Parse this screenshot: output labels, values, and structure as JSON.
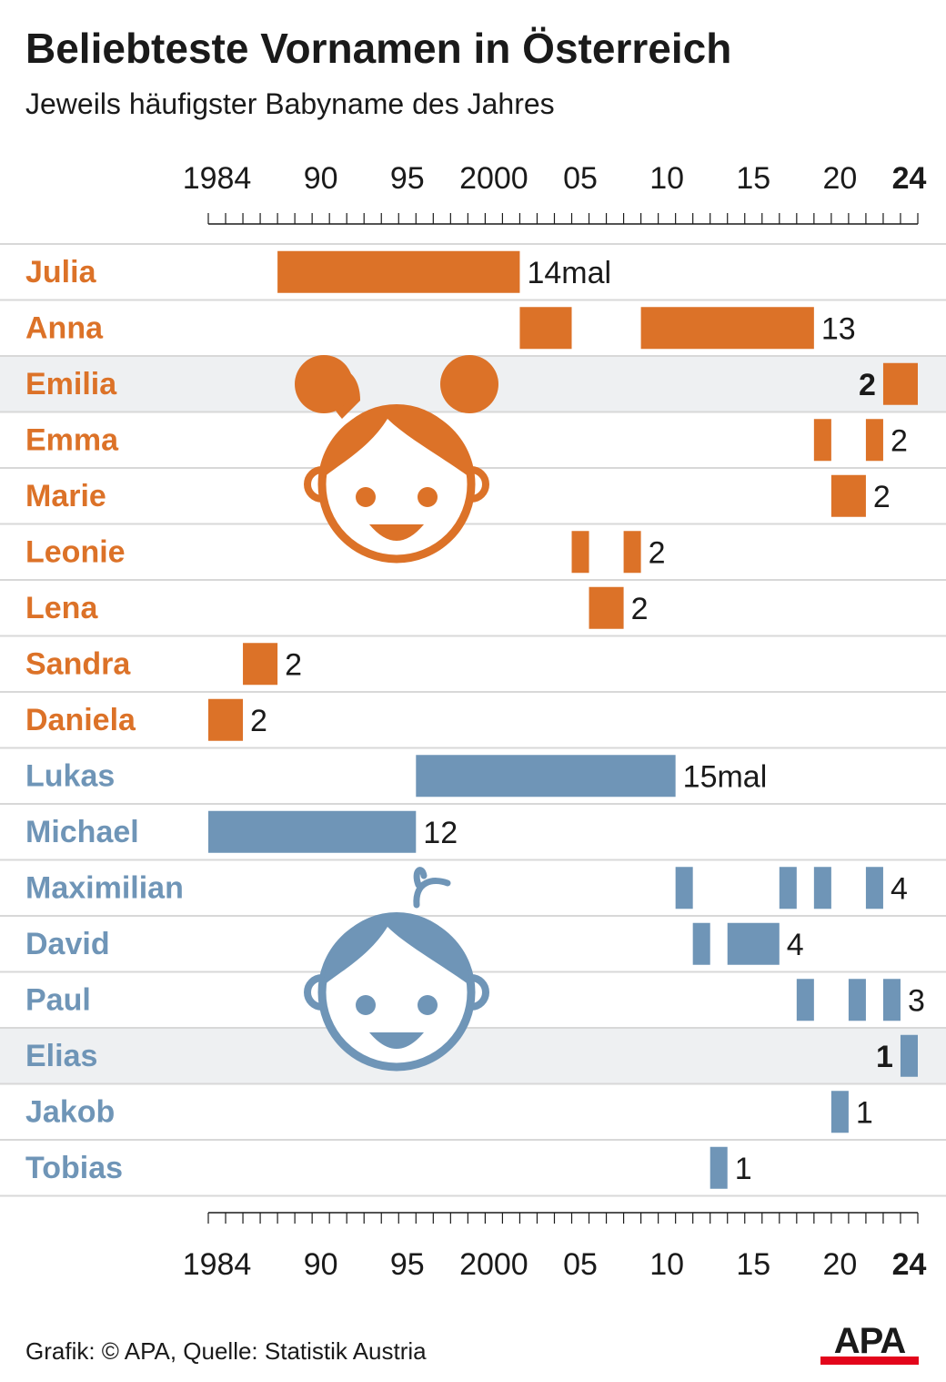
{
  "title": "Beliebteste Vornamen in Österreich",
  "subtitle": "Jeweils häufigster Babyname des Jahres",
  "footer": {
    "source": "Grafik: © APA, Quelle: Statistik Austria",
    "logo_text": "APA"
  },
  "colors": {
    "girls": "#dc7228",
    "boys": "#6f95b7",
    "highlight_row": "#eef0f2",
    "grid": "#d8d8d8",
    "text": "#1a1a1a",
    "logo_red": "#e3051b"
  },
  "icons": {
    "girls": "girl-face-icon",
    "boys": "boy-face-icon"
  },
  "chart_data": {
    "type": "bar",
    "subtype": "timeline",
    "title": "Beliebteste Vornamen in Österreich",
    "subtitle": "Jeweils häufigster Babyname des Jahres",
    "xlim": [
      1984,
      2024
    ],
    "x_ticks": [
      {
        "year": 1984,
        "label": "1984",
        "bold": false
      },
      {
        "year": 1990,
        "label": "90",
        "bold": false
      },
      {
        "year": 1995,
        "label": "95",
        "bold": false
      },
      {
        "year": 2000,
        "label": "2000",
        "bold": false
      },
      {
        "year": 2005,
        "label": "05",
        "bold": false
      },
      {
        "year": 2010,
        "label": "10",
        "bold": false
      },
      {
        "year": 2015,
        "label": "15",
        "bold": false
      },
      {
        "year": 2020,
        "label": "20",
        "bold": false
      },
      {
        "year": 2024,
        "label": "24",
        "bold": true
      }
    ],
    "rows": [
      {
        "name": "Julia",
        "group": "girls",
        "highlight": false,
        "count_label": "14mal",
        "bold_label": false,
        "spans": [
          [
            1988,
            2001
          ]
        ]
      },
      {
        "name": "Anna",
        "group": "girls",
        "highlight": false,
        "count_label": "13",
        "bold_label": false,
        "spans": [
          [
            2002,
            2004
          ],
          [
            2009,
            2018
          ]
        ]
      },
      {
        "name": "Emilia",
        "group": "girls",
        "highlight": true,
        "count_label": "2",
        "bold_label": true,
        "spans": [
          [
            2023,
            2024
          ]
        ]
      },
      {
        "name": "Emma",
        "group": "girls",
        "highlight": false,
        "count_label": "2",
        "bold_label": false,
        "spans": [
          [
            2019,
            2019
          ],
          [
            2022,
            2022
          ]
        ]
      },
      {
        "name": "Marie",
        "group": "girls",
        "highlight": false,
        "count_label": "2",
        "bold_label": false,
        "spans": [
          [
            2020,
            2021
          ]
        ]
      },
      {
        "name": "Leonie",
        "group": "girls",
        "highlight": false,
        "count_label": "2",
        "bold_label": false,
        "spans": [
          [
            2005,
            2005
          ],
          [
            2008,
            2008
          ]
        ]
      },
      {
        "name": "Lena",
        "group": "girls",
        "highlight": false,
        "count_label": "2",
        "bold_label": false,
        "spans": [
          [
            2006,
            2007
          ]
        ]
      },
      {
        "name": "Sandra",
        "group": "girls",
        "highlight": false,
        "count_label": "2",
        "bold_label": false,
        "spans": [
          [
            1986,
            1987
          ]
        ]
      },
      {
        "name": "Daniela",
        "group": "girls",
        "highlight": false,
        "count_label": "2",
        "bold_label": false,
        "spans": [
          [
            1984,
            1985
          ]
        ]
      },
      {
        "name": "Lukas",
        "group": "boys",
        "highlight": false,
        "count_label": "15mal",
        "bold_label": false,
        "spans": [
          [
            1996,
            2010
          ]
        ]
      },
      {
        "name": "Michael",
        "group": "boys",
        "highlight": false,
        "count_label": "12",
        "bold_label": false,
        "spans": [
          [
            1984,
            1995
          ]
        ]
      },
      {
        "name": "Maximilian",
        "group": "boys",
        "highlight": false,
        "count_label": "4",
        "bold_label": false,
        "spans": [
          [
            2011,
            2011
          ],
          [
            2017,
            2017
          ],
          [
            2019,
            2019
          ],
          [
            2022,
            2022
          ]
        ]
      },
      {
        "name": "David",
        "group": "boys",
        "highlight": false,
        "count_label": "4",
        "bold_label": false,
        "spans": [
          [
            2012,
            2012
          ],
          [
            2014,
            2016
          ]
        ]
      },
      {
        "name": "Paul",
        "group": "boys",
        "highlight": false,
        "count_label": "3",
        "bold_label": false,
        "spans": [
          [
            2018,
            2018
          ],
          [
            2021,
            2021
          ],
          [
            2023,
            2023
          ]
        ]
      },
      {
        "name": "Elias",
        "group": "boys",
        "highlight": true,
        "count_label": "1",
        "bold_label": true,
        "spans": [
          [
            2024,
            2024
          ]
        ]
      },
      {
        "name": "Jakob",
        "group": "boys",
        "highlight": false,
        "count_label": "1",
        "bold_label": false,
        "spans": [
          [
            2020,
            2020
          ]
        ]
      },
      {
        "name": "Tobias",
        "group": "boys",
        "highlight": false,
        "count_label": "1",
        "bold_label": false,
        "spans": [
          [
            2013,
            2013
          ]
        ]
      }
    ]
  }
}
